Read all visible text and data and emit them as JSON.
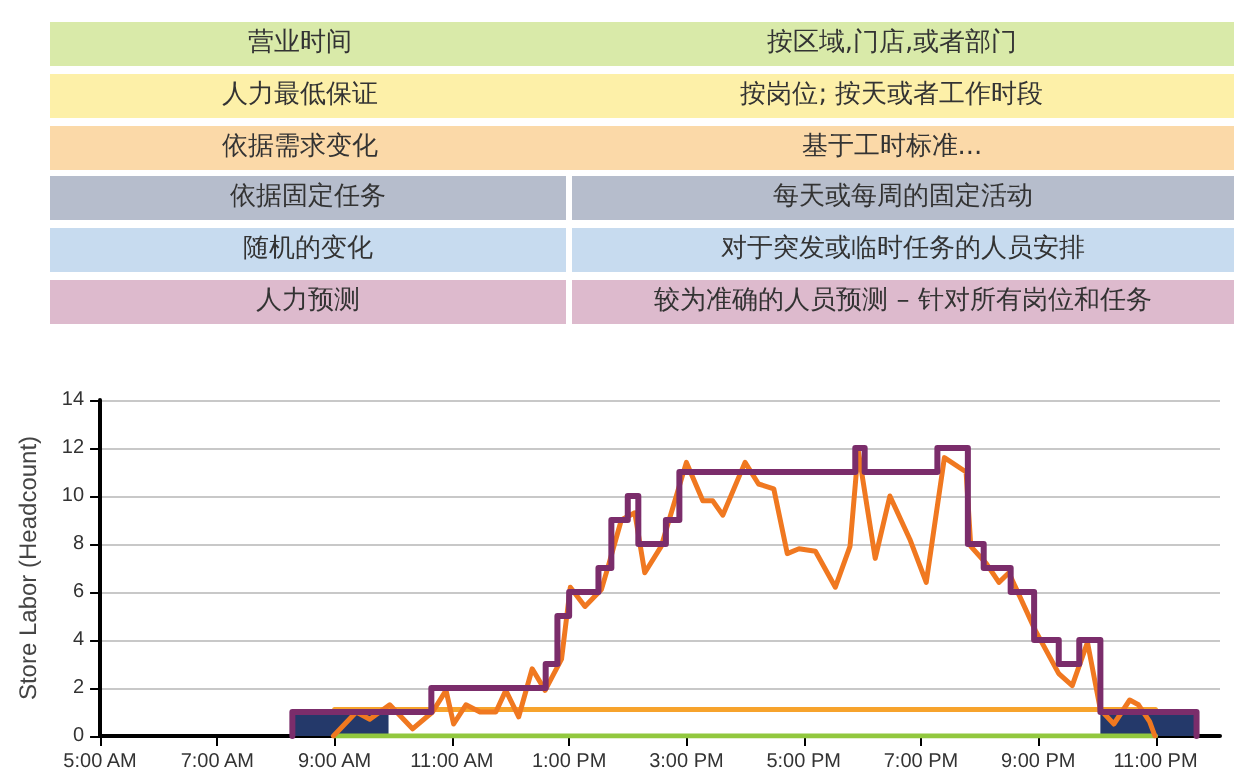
{
  "chart_data": [
    {
      "type": "other",
      "categories": [
        "营业时间",
        "人力最低保证",
        "依据需求变化",
        "依据固定任务",
        "随机的变化",
        "人力预测"
      ],
      "annotations": [
        "按区域,门店,或者部门",
        "按岗位; 按天或者工作时段",
        "基于工时标准...",
        "每天或每周的固定活动",
        "对于突发或临时任务的人员安排",
        "较为准确的人员预测 – 针对所有岗位和任务"
      ],
      "colors": [
        "#d9eaa9",
        "#fdf0a8",
        "#fbd9a8",
        "#b6bdcc",
        "#c7dbef",
        "#ddbacd"
      ]
    },
    {
      "type": "line",
      "ylabel": "Store Labor (Headcount)",
      "grid": "y",
      "xlim": [
        5,
        24.1
      ],
      "xticks": [
        {
          "value": 5,
          "label": "5:00 AM"
        },
        {
          "value": 7,
          "label": "7:00 AM"
        },
        {
          "value": 9,
          "label": "9:00 AM"
        },
        {
          "value": 11,
          "label": "11:00 AM"
        },
        {
          "value": 13,
          "label": "1:00 PM"
        },
        {
          "value": 15,
          "label": "3:00 PM"
        },
        {
          "value": 17,
          "label": "5:00 PM"
        },
        {
          "value": 19,
          "label": "7:00 PM"
        },
        {
          "value": 21,
          "label": "9:00 PM"
        },
        {
          "value": 23,
          "label": "11:00 PM"
        }
      ],
      "ylim": [
        0,
        14
      ],
      "yticks": [
        0,
        2,
        4,
        6,
        8,
        10,
        12,
        14
      ],
      "series": [
        {
          "type": "area",
          "color": "#24396a",
          "x": [
            8.28,
            9.92,
            9.93,
            22.06,
            23.7
          ],
          "values": [
            1,
            1,
            null,
            1,
            1
          ]
        },
        {
          "type": "line",
          "color": "#92c83e",
          "x": [
            9,
            23
          ],
          "values": [
            0,
            0
          ]
        },
        {
          "type": "line",
          "color": "#f7a32c",
          "x": [
            9,
            23
          ],
          "values": [
            1.1,
            1.1
          ]
        },
        {
          "type": "line",
          "color": "#f07820",
          "x": [
            8.98,
            9.37,
            9.6,
            9.94,
            10.33,
            10.67,
            10.9,
            11.03,
            11.24,
            11.48,
            11.75,
            11.92,
            12.14,
            12.37,
            12.59,
            12.87,
            13.02,
            13.27,
            13.55,
            13.67,
            13.89,
            14.12,
            14.29,
            14.57,
            15.0,
            15.28,
            15.45,
            15.62,
            16.0,
            16.23,
            16.49,
            16.72,
            16.92,
            17.2,
            17.54,
            17.79,
            17.93,
            18.22,
            18.47,
            18.81,
            19.09,
            19.4,
            19.77,
            19.85,
            20.11,
            20.33,
            20.5,
            20.95,
            21.35,
            21.58,
            21.84,
            22.06,
            22.29,
            22.56,
            22.71,
            22.9,
            22.99
          ],
          "values": [
            0,
            1,
            0.7,
            1.3,
            0.3,
            1,
            1.9,
            0.5,
            1.3,
            1,
            1,
            1.9,
            0.8,
            2.8,
            1.9,
            3.2,
            6.2,
            5.4,
            6.1,
            7.1,
            9,
            9.3,
            6.8,
            7.9,
            11.4,
            9.8,
            9.8,
            9.2,
            11.4,
            10.5,
            10.3,
            7.6,
            7.8,
            7.7,
            6.2,
            7.9,
            11.9,
            7.4,
            10,
            8.2,
            6.4,
            11.6,
            11,
            7.9,
            7.2,
            6.4,
            6.8,
            4.4,
            2.6,
            2.1,
            3.9,
            1.1,
            0.5,
            1.5,
            1.3,
            0.6,
            0
          ]
        },
        {
          "type": "step",
          "color": "#7b2d6b",
          "x": [
            8.28,
            8.28,
            10.65,
            12.6,
            12.8,
            13.0,
            13.5,
            13.72,
            14.0,
            14.18,
            14.65,
            14.88,
            17.88,
            18.04,
            19.28,
            19.8,
            20.07,
            20.53,
            20.93,
            21.35,
            21.7,
            22.06,
            23.7
          ],
          "values": [
            0,
            1,
            2,
            3,
            5,
            6,
            7,
            9,
            10,
            8,
            9,
            11,
            12,
            11,
            12,
            8,
            7,
            6,
            4,
            3,
            4,
            1,
            0
          ]
        }
      ]
    }
  ]
}
